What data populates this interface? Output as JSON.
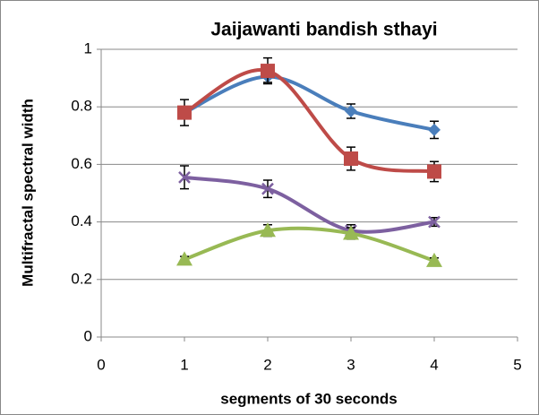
{
  "chart_data": {
    "type": "line",
    "title": "Jaijawanti bandish sthayi",
    "x_label": "segments of 30 seconds",
    "y_label": "Multifractal spectral width",
    "x": [
      1,
      2,
      3,
      4
    ],
    "xlim": [
      0,
      5
    ],
    "xticks": [
      0,
      1,
      2,
      3,
      4,
      5
    ],
    "ylim": [
      0,
      1
    ],
    "yticks": [
      0,
      0.2,
      0.4,
      0.6,
      0.8,
      1
    ],
    "grid": true,
    "smooth": true,
    "series": [
      {
        "color": "#4a7ebb",
        "marker": "diamond",
        "values": [
          0.78,
          0.905,
          0.785,
          0.72
        ],
        "errors": [
          0.02,
          0.02,
          0.025,
          0.03
        ]
      },
      {
        "color": "#be4b48",
        "marker": "square",
        "values": [
          0.78,
          0.925,
          0.62,
          0.575
        ],
        "errors": [
          0.045,
          0.045,
          0.04,
          0.035
        ]
      },
      {
        "color": "#7d60a0",
        "marker": "cross",
        "values": [
          0.555,
          0.515,
          0.37,
          0.4
        ],
        "errors": [
          0.04,
          0.03,
          0.02,
          0.015
        ]
      },
      {
        "color": "#98b954",
        "marker": "triangle",
        "values": [
          0.27,
          0.37,
          0.36,
          0.265
        ],
        "errors": [
          0.01,
          0.02,
          0.02,
          0.01
        ]
      }
    ]
  }
}
